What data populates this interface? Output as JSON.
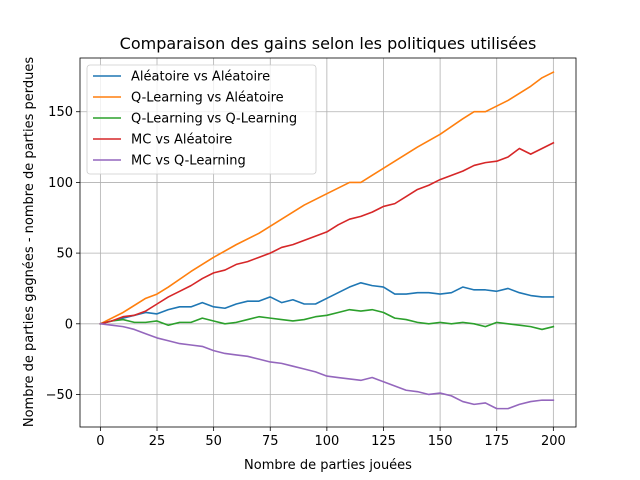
{
  "chart_data": {
    "type": "line",
    "title": "Comparaison des gains selon les politiques utilisées",
    "xlabel": "Nombre de parties jouées",
    "ylabel": "Nombre de parties gagnées - nombre de parties perdues",
    "xlim": [
      -9,
      210
    ],
    "ylim": [
      -73,
      188
    ],
    "xticks": [
      0,
      25,
      50,
      75,
      100,
      125,
      150,
      175,
      200
    ],
    "yticks": [
      -50,
      0,
      50,
      100,
      150
    ],
    "grid": true,
    "legend_position": "top-left",
    "series": [
      {
        "name": "Aléatoire vs Aléatoire",
        "color": "#1f77b4",
        "points": [
          [
            0,
            0
          ],
          [
            5,
            2
          ],
          [
            10,
            4
          ],
          [
            15,
            6
          ],
          [
            20,
            8
          ],
          [
            25,
            7
          ],
          [
            30,
            10
          ],
          [
            35,
            12
          ],
          [
            40,
            12
          ],
          [
            45,
            15
          ],
          [
            50,
            12
          ],
          [
            55,
            11
          ],
          [
            60,
            14
          ],
          [
            65,
            16
          ],
          [
            70,
            16
          ],
          [
            75,
            19
          ],
          [
            80,
            15
          ],
          [
            85,
            17
          ],
          [
            90,
            14
          ],
          [
            95,
            14
          ],
          [
            100,
            18
          ],
          [
            105,
            22
          ],
          [
            110,
            26
          ],
          [
            115,
            29
          ],
          [
            120,
            27
          ],
          [
            125,
            26
          ],
          [
            130,
            21
          ],
          [
            135,
            21
          ],
          [
            140,
            22
          ],
          [
            145,
            22
          ],
          [
            150,
            21
          ],
          [
            155,
            22
          ],
          [
            160,
            26
          ],
          [
            165,
            24
          ],
          [
            170,
            24
          ],
          [
            175,
            23
          ],
          [
            180,
            25
          ],
          [
            185,
            22
          ],
          [
            190,
            20
          ],
          [
            195,
            19
          ],
          [
            200,
            19
          ]
        ]
      },
      {
        "name": "Q-Learning vs Aléatoire",
        "color": "#ff7f0e",
        "points": [
          [
            0,
            0
          ],
          [
            10,
            8
          ],
          [
            20,
            18
          ],
          [
            25,
            21
          ],
          [
            30,
            26
          ],
          [
            40,
            37
          ],
          [
            50,
            47
          ],
          [
            60,
            56
          ],
          [
            70,
            64
          ],
          [
            80,
            74
          ],
          [
            90,
            84
          ],
          [
            100,
            92
          ],
          [
            110,
            100
          ],
          [
            115,
            100
          ],
          [
            120,
            105
          ],
          [
            130,
            115
          ],
          [
            140,
            125
          ],
          [
            150,
            134
          ],
          [
            160,
            145
          ],
          [
            165,
            150
          ],
          [
            170,
            150
          ],
          [
            175,
            154
          ],
          [
            180,
            158
          ],
          [
            190,
            168
          ],
          [
            195,
            174
          ],
          [
            200,
            178
          ]
        ]
      },
      {
        "name": "Q-Learning vs Q-Learning",
        "color": "#2ca02c",
        "points": [
          [
            0,
            0
          ],
          [
            5,
            2
          ],
          [
            10,
            3
          ],
          [
            15,
            1
          ],
          [
            20,
            1
          ],
          [
            25,
            2
          ],
          [
            30,
            -1
          ],
          [
            35,
            1
          ],
          [
            40,
            1
          ],
          [
            45,
            4
          ],
          [
            50,
            2
          ],
          [
            55,
            0
          ],
          [
            60,
            1
          ],
          [
            65,
            3
          ],
          [
            70,
            5
          ],
          [
            75,
            4
          ],
          [
            80,
            3
          ],
          [
            85,
            2
          ],
          [
            90,
            3
          ],
          [
            95,
            5
          ],
          [
            100,
            6
          ],
          [
            105,
            8
          ],
          [
            110,
            10
          ],
          [
            115,
            9
          ],
          [
            120,
            10
          ],
          [
            125,
            8
          ],
          [
            130,
            4
          ],
          [
            135,
            3
          ],
          [
            140,
            1
          ],
          [
            145,
            0
          ],
          [
            150,
            1
          ],
          [
            155,
            0
          ],
          [
            160,
            1
          ],
          [
            165,
            0
          ],
          [
            170,
            -2
          ],
          [
            175,
            1
          ],
          [
            180,
            0
          ],
          [
            185,
            -1
          ],
          [
            190,
            -2
          ],
          [
            195,
            -4
          ],
          [
            200,
            -2
          ]
        ]
      },
      {
        "name": "MC vs Aléatoire",
        "color": "#d62728",
        "points": [
          [
            0,
            0
          ],
          [
            5,
            2
          ],
          [
            10,
            5
          ],
          [
            15,
            6
          ],
          [
            20,
            9
          ],
          [
            25,
            14
          ],
          [
            30,
            19
          ],
          [
            35,
            23
          ],
          [
            40,
            27
          ],
          [
            45,
            32
          ],
          [
            50,
            36
          ],
          [
            55,
            38
          ],
          [
            60,
            42
          ],
          [
            65,
            44
          ],
          [
            70,
            47
          ],
          [
            75,
            50
          ],
          [
            80,
            54
          ],
          [
            85,
            56
          ],
          [
            90,
            59
          ],
          [
            95,
            62
          ],
          [
            100,
            65
          ],
          [
            105,
            70
          ],
          [
            110,
            74
          ],
          [
            115,
            76
          ],
          [
            120,
            79
          ],
          [
            125,
            83
          ],
          [
            130,
            85
          ],
          [
            135,
            90
          ],
          [
            140,
            95
          ],
          [
            145,
            98
          ],
          [
            150,
            102
          ],
          [
            155,
            105
          ],
          [
            160,
            108
          ],
          [
            165,
            112
          ],
          [
            170,
            114
          ],
          [
            175,
            115
          ],
          [
            180,
            118
          ],
          [
            185,
            124
          ],
          [
            190,
            120
          ],
          [
            195,
            124
          ],
          [
            200,
            128
          ]
        ]
      },
      {
        "name": "MC vs Q-Learning",
        "color": "#9467bd",
        "points": [
          [
            0,
            0
          ],
          [
            5,
            -1
          ],
          [
            10,
            -2
          ],
          [
            15,
            -4
          ],
          [
            20,
            -7
          ],
          [
            25,
            -10
          ],
          [
            30,
            -12
          ],
          [
            35,
            -14
          ],
          [
            40,
            -15
          ],
          [
            45,
            -16
          ],
          [
            50,
            -19
          ],
          [
            55,
            -21
          ],
          [
            60,
            -22
          ],
          [
            65,
            -23
          ],
          [
            70,
            -25
          ],
          [
            75,
            -27
          ],
          [
            80,
            -28
          ],
          [
            85,
            -30
          ],
          [
            90,
            -32
          ],
          [
            95,
            -34
          ],
          [
            100,
            -37
          ],
          [
            105,
            -38
          ],
          [
            110,
            -39
          ],
          [
            115,
            -40
          ],
          [
            120,
            -38
          ],
          [
            125,
            -41
          ],
          [
            130,
            -44
          ],
          [
            135,
            -47
          ],
          [
            140,
            -48
          ],
          [
            145,
            -50
          ],
          [
            150,
            -49
          ],
          [
            155,
            -51
          ],
          [
            160,
            -55
          ],
          [
            165,
            -57
          ],
          [
            170,
            -56
          ],
          [
            175,
            -60
          ],
          [
            180,
            -60
          ],
          [
            185,
            -57
          ],
          [
            190,
            -55
          ],
          [
            195,
            -54
          ],
          [
            200,
            -54
          ]
        ]
      }
    ]
  }
}
